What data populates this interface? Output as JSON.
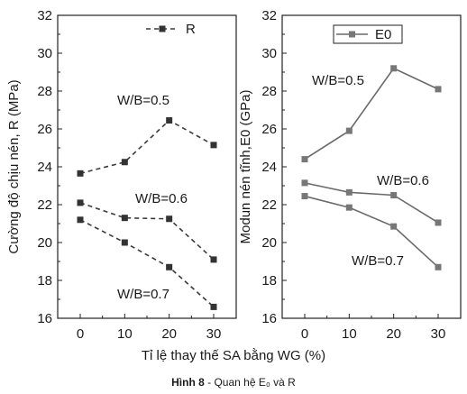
{
  "caption": {
    "bold": "Hình 8",
    "rest": " - Quan hệ E₀ và R"
  },
  "shared_xlabel": "Tỉ lệ thay thế SA bằng WG (%)",
  "chart_data": [
    {
      "type": "line",
      "categories": [
        0,
        10,
        20,
        30
      ],
      "ylabel": "Cường độ chịu nén, R (MPa)",
      "ylim": [
        16,
        32
      ],
      "yticks": [
        16,
        18,
        20,
        22,
        24,
        26,
        28,
        30,
        32
      ],
      "legend": {
        "label": "R",
        "placement": "top-right",
        "line_style": "dashed"
      },
      "series": [
        {
          "name": "W/B=0.5",
          "values": [
            23.65,
            24.25,
            26.45,
            25.15
          ]
        },
        {
          "name": "W/B=0.6",
          "values": [
            22.1,
            21.3,
            21.25,
            19.1
          ]
        },
        {
          "name": "W/B=0.7",
          "values": [
            21.2,
            20.0,
            18.7,
            16.6
          ]
        }
      ],
      "annotations": [
        "W/B=0.5",
        "W/B=0.6",
        "W/B=0.7"
      ]
    },
    {
      "type": "line",
      "categories": [
        0,
        10,
        20,
        30
      ],
      "ylabel": "Modun nén tĩnh,E0 (GPa)",
      "ylim": [
        16,
        32
      ],
      "yticks": [
        16,
        18,
        20,
        22,
        24,
        26,
        28,
        30,
        32
      ],
      "legend": {
        "label": "E0",
        "placement": "top-center",
        "line_style": "solid"
      },
      "series": [
        {
          "name": "W/B=0.5",
          "values": [
            24.4,
            25.9,
            29.2,
            28.1
          ]
        },
        {
          "name": "W/B=0.6",
          "values": [
            23.15,
            22.65,
            22.5,
            21.05
          ]
        },
        {
          "name": "W/B=0.7",
          "values": [
            22.45,
            21.85,
            20.85,
            18.7
          ]
        }
      ],
      "annotations": [
        "W/B=0.5",
        "W/B=0.6",
        "W/B=0.7"
      ]
    }
  ]
}
